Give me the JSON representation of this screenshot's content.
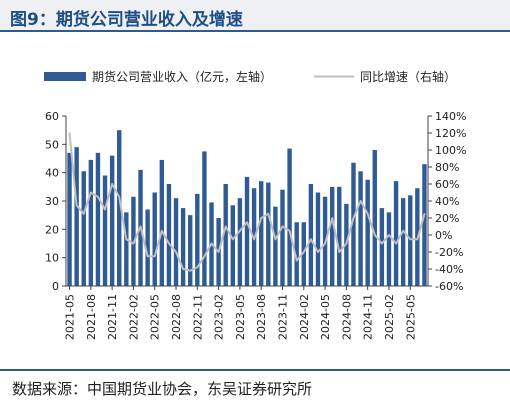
{
  "figure_title": "图9：期货公司营业收入及增速",
  "source_note": "数据来源：中国期货业协会，东吴证券研究所",
  "colors": {
    "bar": "#2e5b96",
    "line": "#bfbfbf",
    "title": "#1f4e86",
    "rule": "#2e5b8f"
  },
  "chart_data": {
    "type": "bar",
    "title": "",
    "legend_position": "top",
    "grid": false,
    "x_tick_labels": [
      "2021-05",
      "2021-08",
      "2021-11",
      "2022-02",
      "2022-05",
      "2022-08",
      "2022-11",
      "2023-02",
      "2023-05",
      "2023-08",
      "2023-11",
      "2024-02",
      "2024-05",
      "2024-08",
      "2024-11",
      "2025-02",
      "2025-05"
    ],
    "left_axis": {
      "range": [
        0,
        60
      ],
      "ticks": [
        "0",
        "10",
        "20",
        "30",
        "40",
        "50",
        "60"
      ]
    },
    "right_axis": {
      "range": [
        -60,
        140
      ],
      "ticks": [
        "-60%",
        "-40%",
        "-20%",
        "0%",
        "20%",
        "40%",
        "60%",
        "80%",
        "100%",
        "120%",
        "140%"
      ]
    },
    "categories": [
      "2021-05",
      "2021-06",
      "2021-07",
      "2021-08",
      "2021-09",
      "2021-10",
      "2021-11",
      "2021-12",
      "2022-01",
      "2022-02",
      "2022-03",
      "2022-04",
      "2022-05",
      "2022-06",
      "2022-07",
      "2022-08",
      "2022-09",
      "2022-10",
      "2022-11",
      "2022-12",
      "2023-01",
      "2023-02",
      "2023-03",
      "2023-04",
      "2023-05",
      "2023-06",
      "2023-07",
      "2023-08",
      "2023-09",
      "2023-10",
      "2023-11",
      "2023-12",
      "2024-01",
      "2024-02",
      "2024-03",
      "2024-04",
      "2024-05",
      "2024-06",
      "2024-07",
      "2024-08",
      "2024-09",
      "2024-10",
      "2024-11",
      "2024-12",
      "2025-01",
      "2025-02",
      "2025-03",
      "2025-04",
      "2025-05",
      "2025-06",
      "2025-07"
    ],
    "series": [
      {
        "name": "期货公司营业收入（亿元，左轴）",
        "axis": "left",
        "type": "bar",
        "values": [
          47,
          49,
          40.5,
          44.5,
          47,
          39,
          46,
          55,
          26,
          31.5,
          41,
          27,
          33,
          44.5,
          36,
          31,
          27.5,
          25,
          32.5,
          47.5,
          29.5,
          24,
          36,
          28.5,
          31,
          38.5,
          34.5,
          37,
          36.5,
          28,
          34,
          48.5,
          22.5,
          22.5,
          36,
          33,
          31.5,
          35,
          35,
          29,
          43.5,
          40.5,
          37.5,
          48,
          27.5,
          26,
          37,
          31,
          32,
          34.5,
          43
        ]
      },
      {
        "name": "同比增速（右轴）",
        "axis": "right",
        "type": "line",
        "values": [
          120,
          35,
          25,
          50,
          45,
          30,
          60,
          45,
          -5,
          -10,
          10,
          -25,
          -25,
          5,
          -10,
          -20,
          -40,
          -42,
          -38,
          -25,
          -10,
          -20,
          10,
          -5,
          5,
          15,
          -5,
          20,
          25,
          -5,
          10,
          5,
          -30,
          -20,
          -5,
          -20,
          -10,
          20,
          -20,
          -10,
          20,
          40,
          25,
          0,
          -10,
          0,
          -10,
          5,
          -5,
          -5,
          25
        ]
      }
    ]
  }
}
